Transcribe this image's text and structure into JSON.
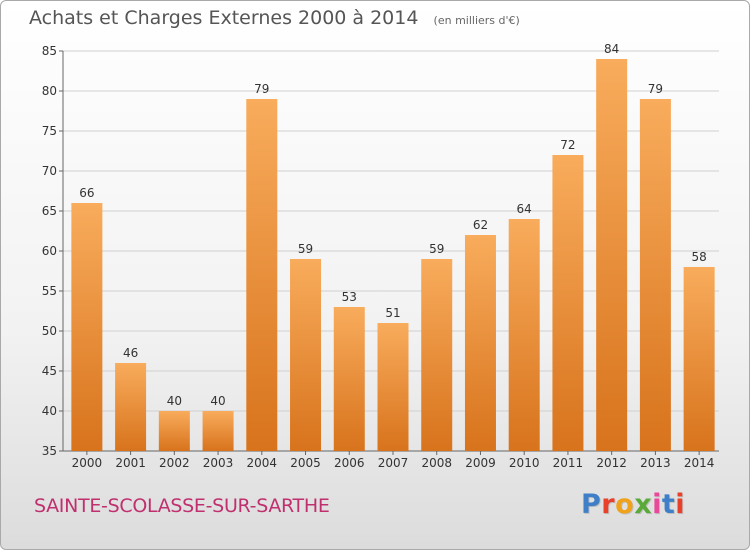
{
  "title": "Achats et Charges Externes 2000 à 2014",
  "subtitle": "(en milliers d'€)",
  "commune": "SAINTE-SCOLASSE-SUR-SARTHE",
  "logo": {
    "text": "Proxiti",
    "colors": [
      "#3f7fc8",
      "#e8402a",
      "#f0a21a",
      "#5aaa3a",
      "#e84a9a",
      "#3f7fc8",
      "#e8402a"
    ]
  },
  "colors": {
    "bar_top": "#f8ac5c",
    "bar_bottom": "#d8731c",
    "grid": "#d0d0d0",
    "axis_text": "#333333"
  },
  "chart_data": {
    "type": "bar",
    "title": "Achats et Charges Externes 2000 à 2014",
    "subtitle": "(en milliers d'€)",
    "categories": [
      "2000",
      "2001",
      "2002",
      "2003",
      "2004",
      "2005",
      "2006",
      "2007",
      "2008",
      "2009",
      "2010",
      "2011",
      "2012",
      "2013",
      "2014"
    ],
    "values": [
      66,
      46,
      40,
      40,
      79,
      59,
      53,
      51,
      59,
      62,
      64,
      72,
      84,
      79,
      58
    ],
    "xlabel": "",
    "ylabel": "",
    "ylim": [
      35,
      85
    ],
    "yticks": [
      35,
      40,
      45,
      50,
      55,
      60,
      65,
      70,
      75,
      80,
      85
    ],
    "grid": true,
    "data_labels": true
  }
}
